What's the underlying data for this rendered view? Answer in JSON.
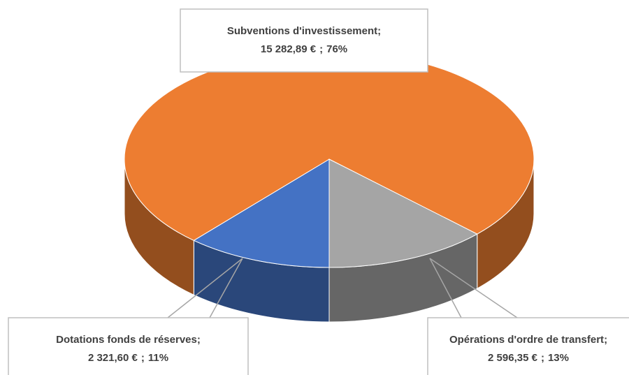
{
  "chart_data": {
    "type": "pie",
    "categories": [
      "Dotations fonds de réserves",
      "Subventions d'investissement",
      "Opérations d'ordre de transfert"
    ],
    "values": [
      2321.6,
      15282.89,
      2596.35
    ],
    "value_labels": [
      "2 321,60 €",
      "15 282,89 €",
      "2 596,35 €"
    ],
    "percents": [
      11,
      76,
      13
    ],
    "percent_labels": [
      "11%",
      "76%",
      "13%"
    ],
    "separator": ";",
    "colors": [
      "#4472c4",
      "#ed7d31",
      "#a5a5a5"
    ],
    "three_d": true
  }
}
